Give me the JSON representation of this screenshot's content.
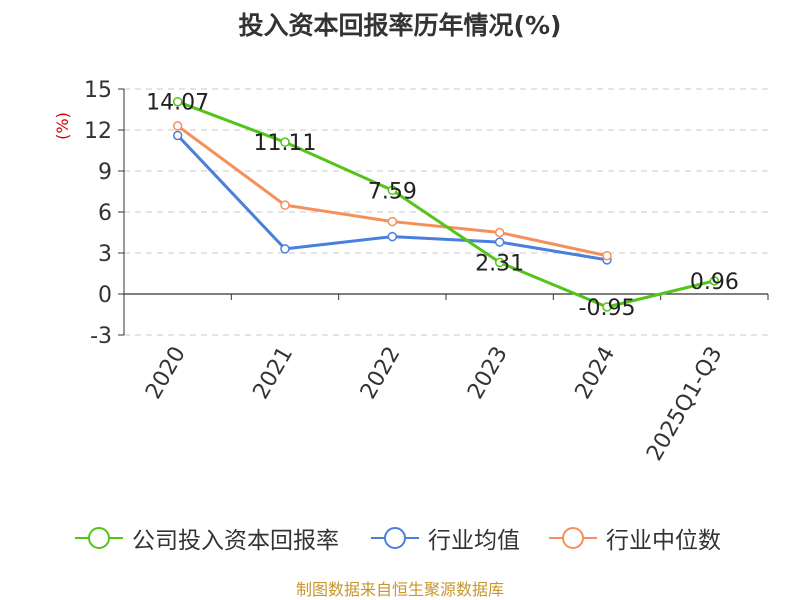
{
  "chart_data": {
    "type": "line",
    "title": "投入资本回报率历年情况(%)",
    "ylabel": "(%)",
    "xlabel": "",
    "categories": [
      "2020",
      "2021",
      "2022",
      "2023",
      "2024",
      "2025Q1-Q3"
    ],
    "ylim": [
      -3,
      15
    ],
    "yticks": [
      -3,
      0,
      3,
      6,
      9,
      12,
      15
    ],
    "grid": true,
    "legend_position": "bottom",
    "series": [
      {
        "name": "公司投入资本回报率",
        "color": "#52c41a",
        "values": [
          14.07,
          11.11,
          7.59,
          2.31,
          -0.95,
          0.96
        ],
        "labels": [
          "14.07",
          "11.11",
          "7.59",
          "2.31",
          "-0.95",
          "0.96"
        ]
      },
      {
        "name": "行业均值",
        "color": "#4a7fdc",
        "values": [
          11.6,
          3.3,
          4.2,
          3.8,
          2.5,
          null
        ]
      },
      {
        "name": "行业中位数",
        "color": "#f5905a",
        "values": [
          12.3,
          6.5,
          5.3,
          4.5,
          2.8,
          null
        ]
      }
    ]
  },
  "source": "制图数据来自恒生聚源数据库"
}
